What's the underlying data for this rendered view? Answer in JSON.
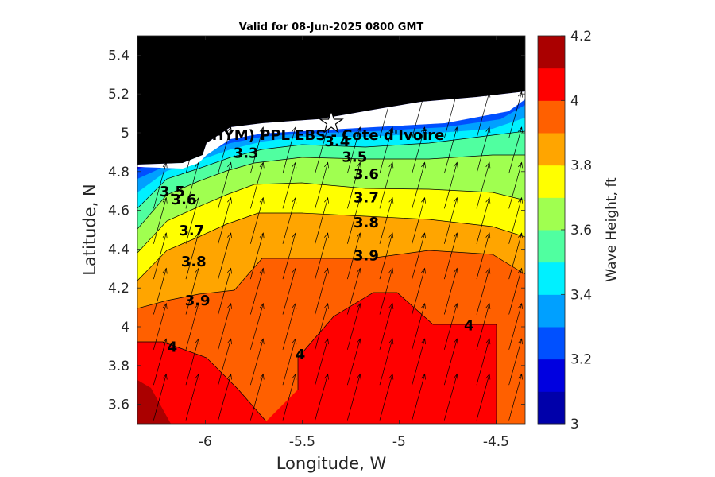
{
  "chart_data": {
    "type": "heatmap",
    "title": "Valid for 08-Jun-2025 0800 GMT",
    "xlabel": "Longitude, W",
    "ylabel": "Latitude, N",
    "xlim": [
      -6.35,
      -4.35
    ],
    "ylim": [
      3.5,
      5.5
    ],
    "x_ticks": [
      -6,
      -5.5,
      -5,
      -4.5
    ],
    "x_tick_labels": [
      "-6",
      "-5.5",
      "-5",
      "-4.5"
    ],
    "y_ticks": [
      3.6,
      3.8,
      4,
      4.2,
      4.4,
      4.6,
      4.8,
      5,
      5.2,
      5.4
    ],
    "y_tick_labels": [
      "3.6",
      "3.8",
      "4",
      "4.2",
      "4.4",
      "4.6",
      "4.8",
      "5",
      "5.2",
      "5.4"
    ],
    "colorbar": {
      "label": "Wave Height, ft",
      "range": [
        3,
        4.2
      ],
      "ticks": [
        3,
        3.2,
        3.4,
        3.6,
        3.8,
        4,
        4.2
      ],
      "tick_labels": [
        "3",
        "3.2",
        "3.4",
        "3.6",
        "3.8",
        "4",
        "4.2"
      ],
      "colors": [
        "#0000aa",
        "#0000e0",
        "#0050ff",
        "#00a0ff",
        "#00f0ff",
        "#50ffa0",
        "#a0ff50",
        "#ffff00",
        "#ffa500",
        "#ff6000",
        "#ff0000",
        "#aa0000"
      ]
    },
    "contour_levels": [
      3.5,
      3.6,
      3.7,
      3.8,
      3.9,
      4.0,
      4.1
    ],
    "contour_labels": [
      {
        "text": "3.3",
        "x": -5.79,
        "y": 4.9
      },
      {
        "text": "3.4",
        "x": -5.32,
        "y": 4.96
      },
      {
        "text": "3.5",
        "x": -5.23,
        "y": 4.88
      },
      {
        "text": "3.5",
        "x": -6.17,
        "y": 4.7
      },
      {
        "text": "3.6",
        "x": -6.11,
        "y": 4.66
      },
      {
        "text": "3.6",
        "x": -5.17,
        "y": 4.79
      },
      {
        "text": "3.7",
        "x": -5.17,
        "y": 4.67
      },
      {
        "text": "3.7",
        "x": -6.07,
        "y": 4.5
      },
      {
        "text": "3.8",
        "x": -5.17,
        "y": 4.54
      },
      {
        "text": "3.8",
        "x": -6.06,
        "y": 4.34
      },
      {
        "text": "3.9",
        "x": -5.17,
        "y": 4.37
      },
      {
        "text": "3.9",
        "x": -6.04,
        "y": 4.14
      },
      {
        "text": "4",
        "x": -6.17,
        "y": 3.9
      },
      {
        "text": "4",
        "x": -5.51,
        "y": 3.86
      },
      {
        "text": "4",
        "x": -4.64,
        "y": 4.01
      }
    ],
    "station": {
      "name": "(ONHYM) PPL EBS - Cote d'Ivoire",
      "x": -5.35,
      "y": 5.05
    },
    "wave_direction": "from south-southwest (arrows point north-northeast)",
    "grid": false
  }
}
